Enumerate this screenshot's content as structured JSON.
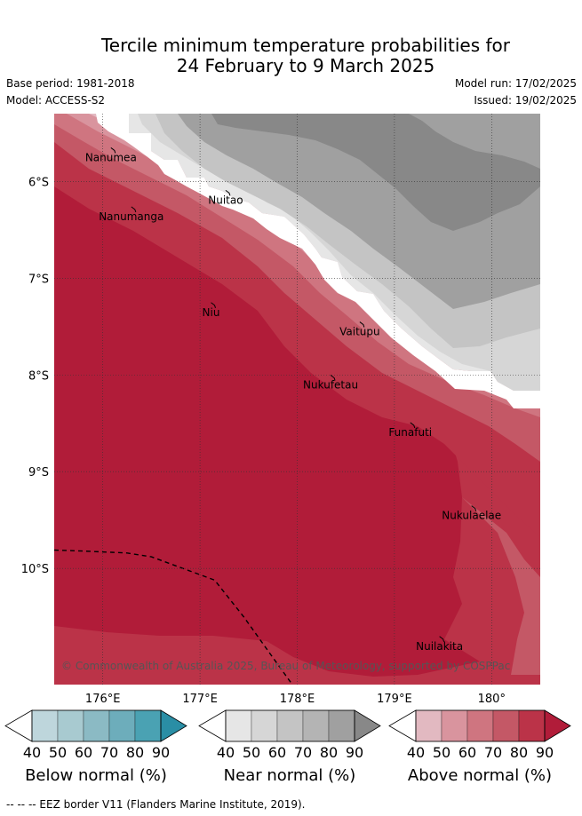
{
  "title_line1": "Tercile minimum temperature probabilities for",
  "title_line2": "24 February to 9 March 2025",
  "base_period": "Base period: 1981-2018",
  "model": "Model: ACCESS-S2",
  "model_run": "Model run: 17/02/2025",
  "issued": "Issued: 19/02/2025",
  "copyright": "© Commonwealth of Australia 2025, Bureau of Meteorology, supported by COSPPac",
  "map": {
    "lon_range": [
      175.5,
      180.5
    ],
    "lat_range": [
      -11.2,
      -5.3
    ],
    "lon_ticks": [
      {
        "value": 176,
        "label": "176°E"
      },
      {
        "value": 177,
        "label": "177°E"
      },
      {
        "value": 178,
        "label": "178°E"
      },
      {
        "value": 179,
        "label": "179°E"
      },
      {
        "value": 180,
        "label": "180°"
      }
    ],
    "lat_ticks": [
      {
        "value": -6,
        "label": "6°S"
      },
      {
        "value": -7,
        "label": "7°S"
      },
      {
        "value": -8,
        "label": "8°S"
      },
      {
        "value": -9,
        "label": "9°S"
      },
      {
        "value": -10,
        "label": "10°S"
      }
    ],
    "places": [
      {
        "name": "Nanumea",
        "lon": 176.12,
        "lat": -5.68
      },
      {
        "name": "Nuitao",
        "lon": 177.3,
        "lat": -6.12
      },
      {
        "name": "Nanumanga",
        "lon": 176.33,
        "lat": -6.29
      },
      {
        "name": "Niu",
        "lon": 177.15,
        "lat": -7.28
      },
      {
        "name": "Vaitupu",
        "lon": 178.68,
        "lat": -7.48
      },
      {
        "name": "Nukufetau",
        "lon": 178.38,
        "lat": -8.03
      },
      {
        "name": "Funafuti",
        "lon": 179.2,
        "lat": -8.52
      },
      {
        "name": "Nukulaelae",
        "lon": 179.83,
        "lat": -9.38
      },
      {
        "name": "Nuilakita",
        "lon": 179.5,
        "lat": -10.73
      }
    ],
    "eez_border": [
      [
        175.5,
        -9.81
      ],
      [
        175.8,
        -9.82
      ],
      [
        176.25,
        -9.84
      ],
      [
        176.5,
        -9.88
      ],
      [
        177.15,
        -10.12
      ],
      [
        177.45,
        -10.5
      ],
      [
        177.72,
        -10.88
      ],
      [
        177.95,
        -11.2
      ]
    ]
  },
  "colorbars": [
    {
      "label": "Below normal (%)",
      "ticks": [
        "40",
        "50",
        "60",
        "70",
        "80",
        "90"
      ],
      "colors": [
        "#ffffff",
        "#bed6dc",
        "#a8cad0",
        "#8bbac4",
        "#6dadbb",
        "#4aa2b3",
        "#2a8ea5"
      ]
    },
    {
      "label": "Near normal (%)",
      "ticks": [
        "40",
        "50",
        "60",
        "70",
        "80",
        "90"
      ],
      "colors": [
        "#ffffff",
        "#e6e6e6",
        "#d6d6d6",
        "#c4c4c4",
        "#b4b4b4",
        "#a0a0a0",
        "#888888"
      ]
    },
    {
      "label": "Above normal (%)",
      "ticks": [
        "40",
        "50",
        "60",
        "70",
        "80",
        "90"
      ],
      "colors": [
        "#ffffff",
        "#e2b9c1",
        "#d9949e",
        "#cf7580",
        "#c45866",
        "#bb3348",
        "#b11c39"
      ]
    }
  ],
  "footer": "--  --  -- EEZ border V11 (Flanders Marine Institute, 2019)."
}
